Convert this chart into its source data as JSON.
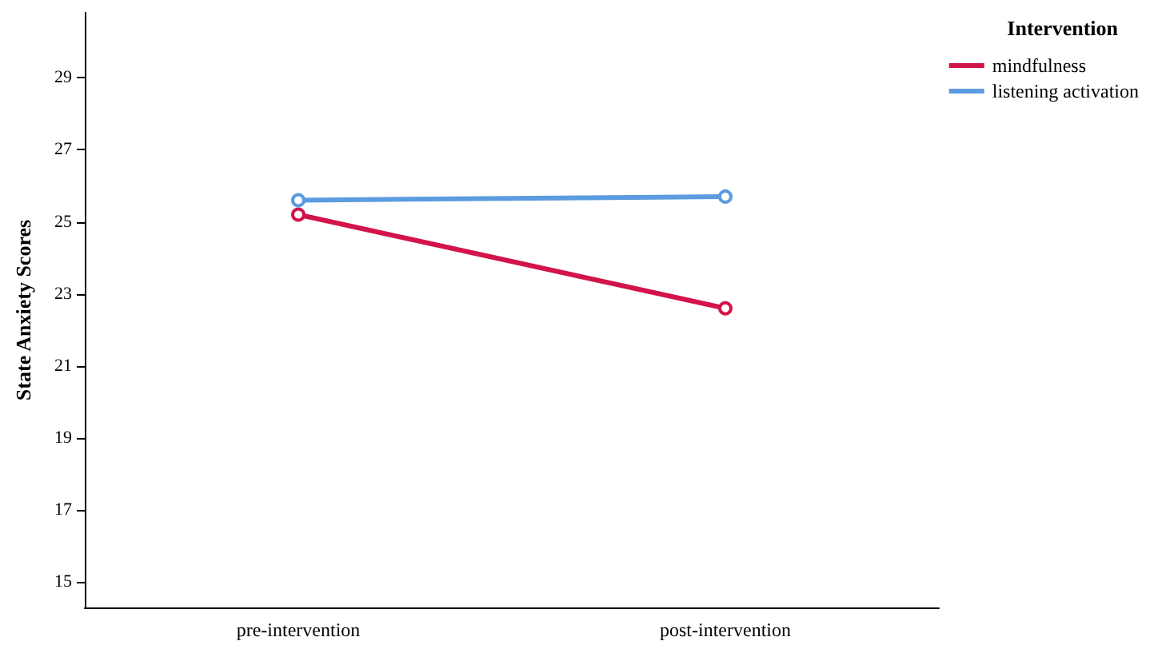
{
  "chart_data": {
    "type": "line",
    "ylabel": "State Anxiety Scores",
    "legend_title": "Intervention",
    "categories": [
      "pre-intervention",
      "post-intervention"
    ],
    "series": [
      {
        "name": "mindfulness",
        "color": "#d2144a",
        "values": [
          25.2,
          22.6
        ]
      },
      {
        "name": "listening activation",
        "color": "#5b9be0",
        "values": [
          25.6,
          25.7
        ]
      }
    ],
    "ylim": [
      14.3,
      30.8
    ],
    "yticks": [
      15,
      17,
      19,
      21,
      23,
      25,
      27,
      29
    ],
    "grid": false,
    "legend": "top right",
    "marker": "circle"
  }
}
